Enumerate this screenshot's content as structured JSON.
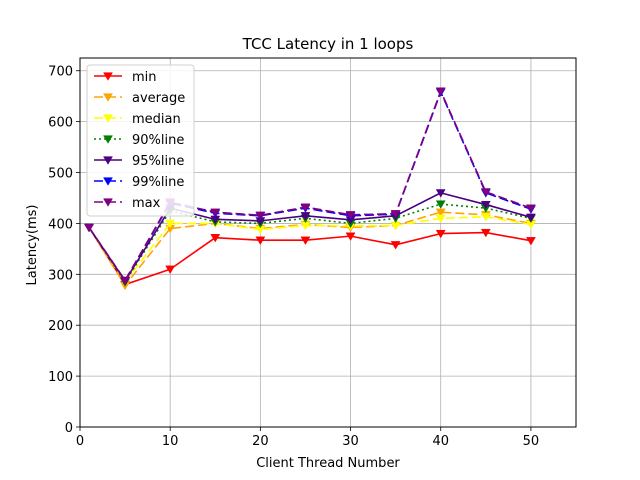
{
  "chart_data": {
    "type": "line",
    "title": "TCC Latency in 1 loops",
    "xlabel": "Client Thread Number",
    "ylabel": "Latency(ms)",
    "xlim": [
      0,
      55
    ],
    "ylim": [
      0,
      725
    ],
    "xticks": [
      0,
      10,
      20,
      30,
      40,
      50
    ],
    "yticks": [
      0,
      100,
      200,
      300,
      400,
      500,
      600,
      700
    ],
    "grid": true,
    "legend_position": "top-left",
    "x": [
      1,
      5,
      10,
      15,
      20,
      25,
      30,
      35,
      40,
      45,
      50
    ],
    "series": [
      {
        "name": "min",
        "color": "#ff0000",
        "dash": "solid",
        "marker": "triangle-down",
        "values": [
          392,
          280,
          310,
          372,
          367,
          367,
          375,
          358,
          380,
          382,
          366
        ]
      },
      {
        "name": "average",
        "color": "#ffa500",
        "dash": "dashed",
        "marker": "triangle-down",
        "values": [
          392,
          278,
          390,
          400,
          390,
          398,
          392,
          396,
          422,
          417,
          400
        ]
      },
      {
        "name": "median",
        "color": "#ffff00",
        "dash": "dashed",
        "marker": "triangle-down",
        "values": [
          392,
          285,
          400,
          400,
          388,
          396,
          395,
          396,
          410,
          413,
          398
        ]
      },
      {
        "name": "90%line",
        "color": "#008000",
        "dash": "dotted",
        "marker": "triangle-down",
        "values": [
          392,
          285,
          425,
          403,
          400,
          410,
          400,
          410,
          438,
          430,
          410
        ]
      },
      {
        "name": "95%line",
        "color": "#4b0082",
        "dash": "solid",
        "marker": "triangle-down",
        "values": [
          392,
          287,
          430,
          408,
          405,
          415,
          407,
          415,
          460,
          437,
          412
        ]
      },
      {
        "name": "99%line",
        "color": "#0000ff",
        "dash": "dashed",
        "marker": "triangle-down",
        "values": [
          392,
          288,
          440,
          420,
          415,
          430,
          415,
          418,
          658,
          460,
          428
        ]
      },
      {
        "name": "max",
        "color": "#800080",
        "dash": "dashed",
        "marker": "triangle-down",
        "values": [
          392,
          288,
          442,
          422,
          416,
          432,
          417,
          419,
          660,
          462,
          430
        ]
      }
    ]
  }
}
